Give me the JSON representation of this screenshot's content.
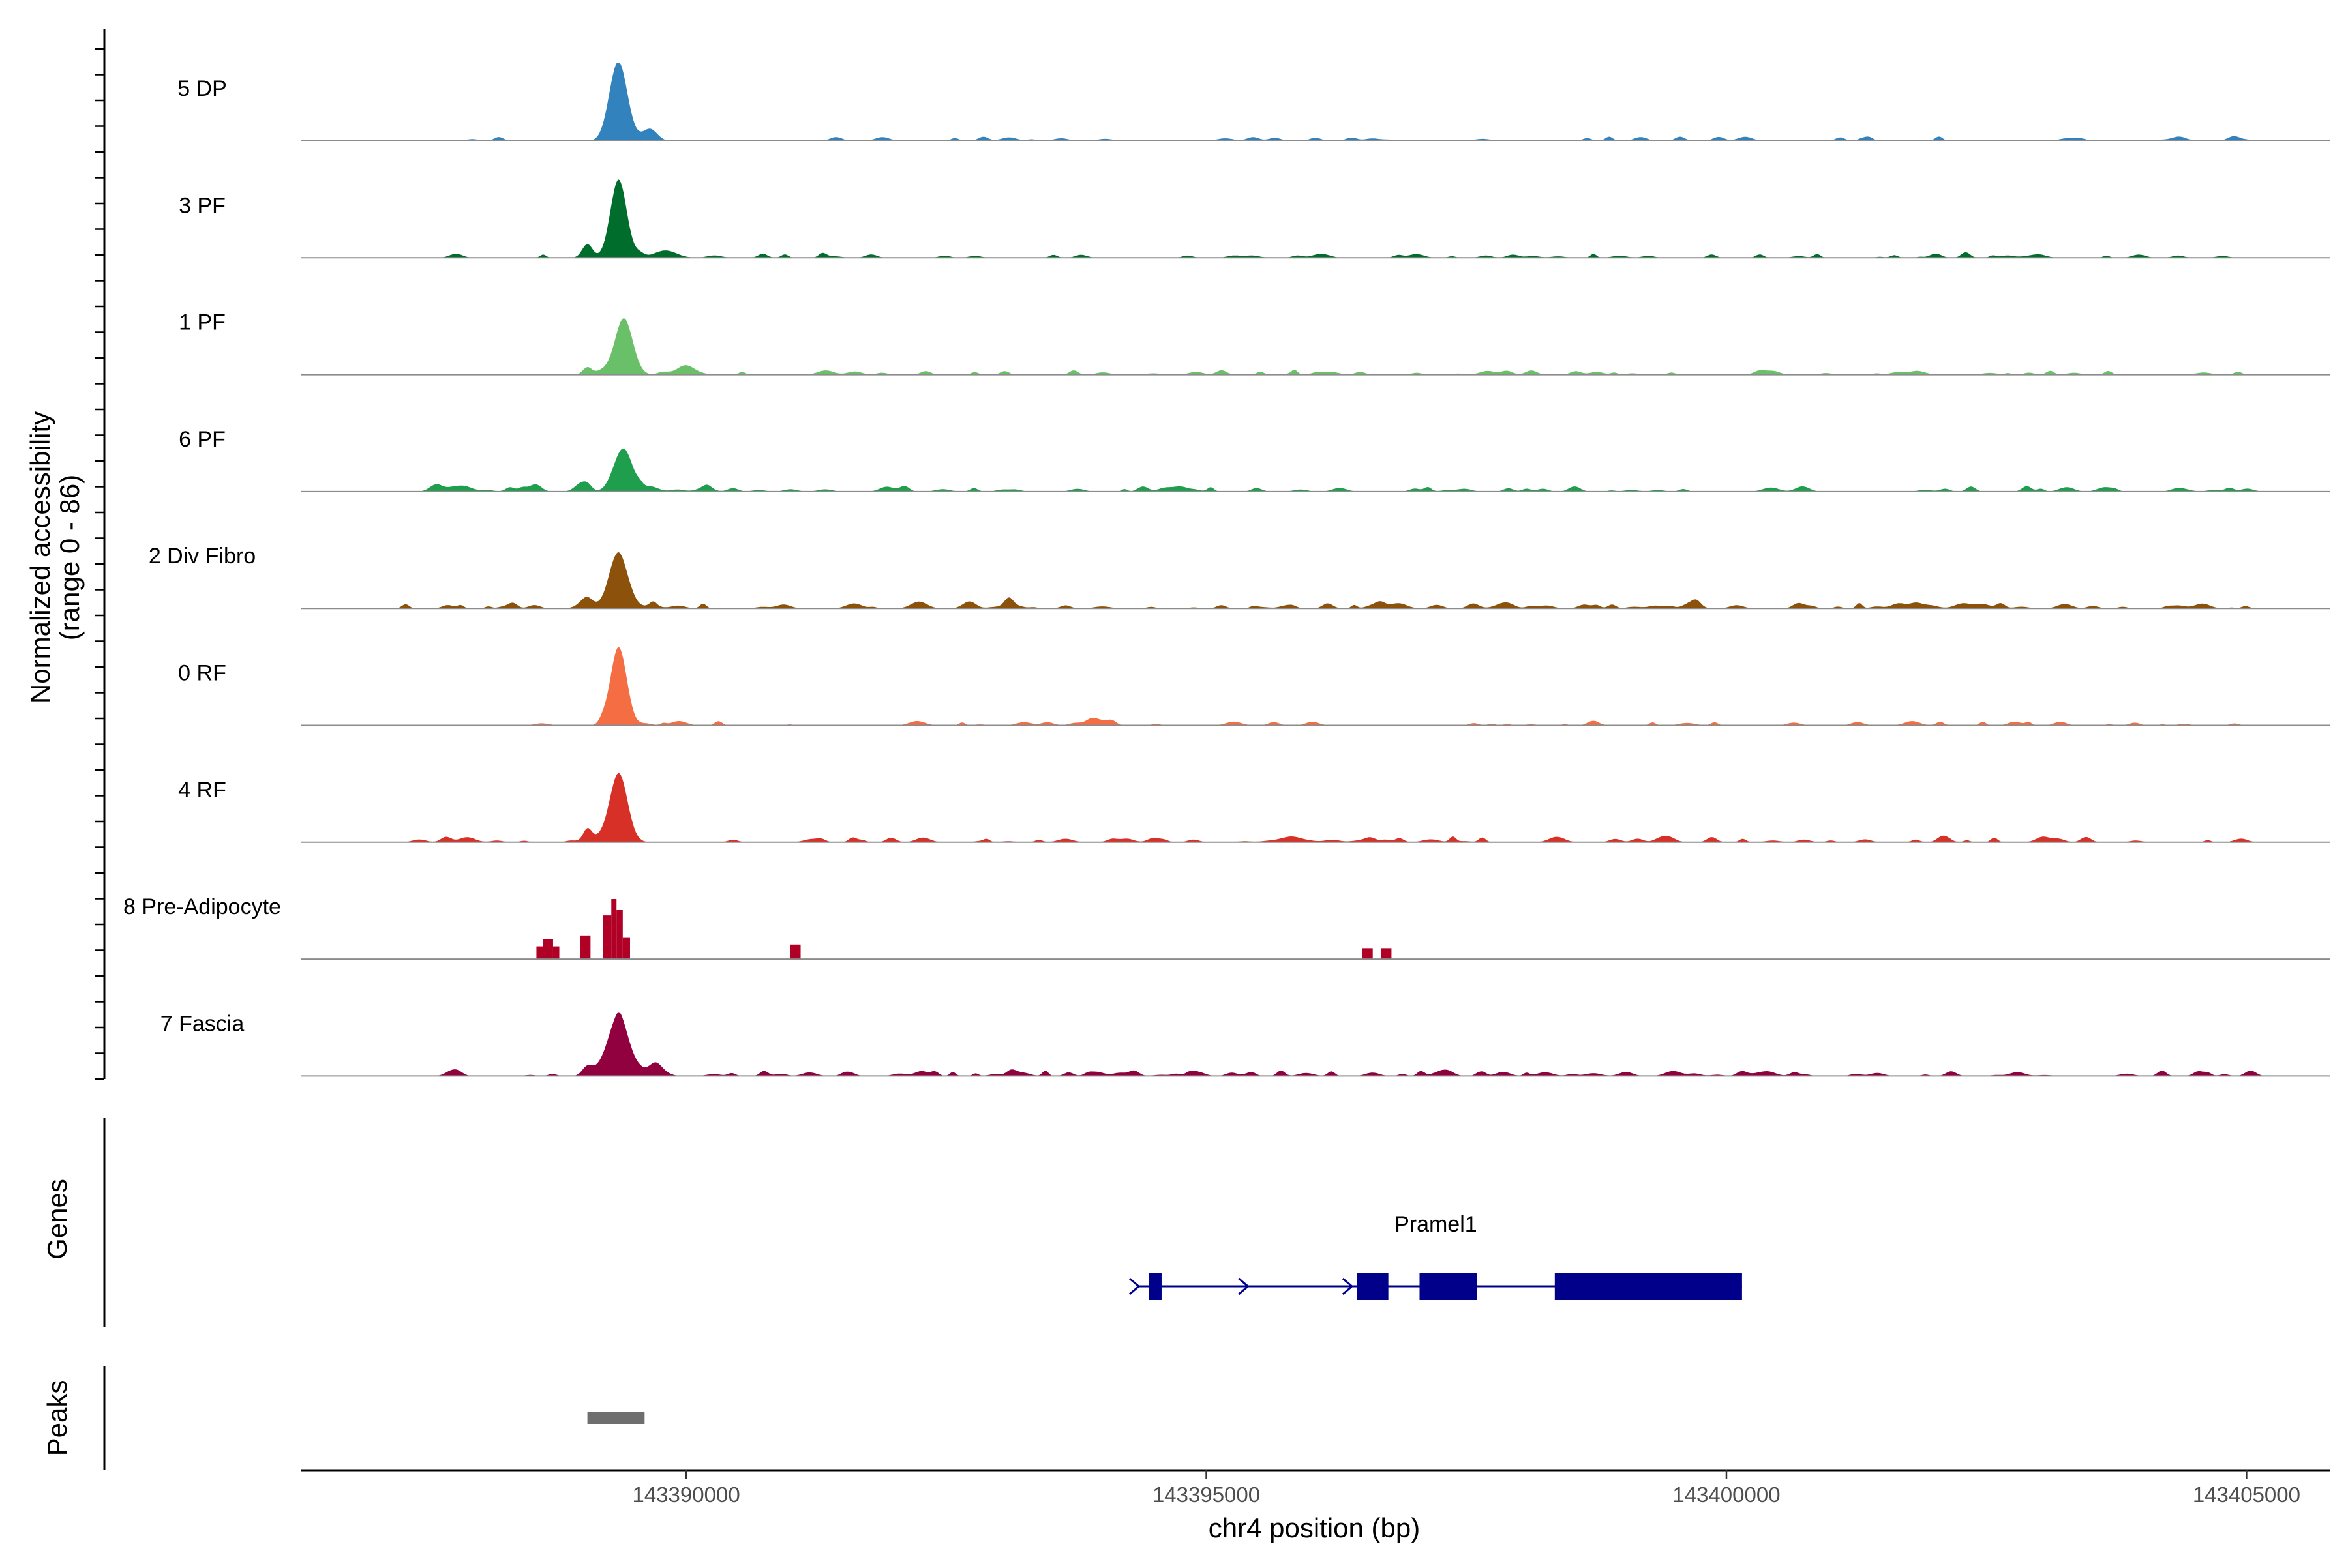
{
  "chart_data": {
    "type": "area",
    "title": "",
    "ylabel_line1": "Normalized accessibility",
    "ylabel_line2": "(range 0 - 86)",
    "yrange": [
      0,
      86
    ],
    "xlabel": "chr4 position (bp)",
    "xlim": [
      143386300,
      143405800
    ],
    "xticks": [
      {
        "value": 143390000,
        "label": "143390000"
      },
      {
        "value": 143395000,
        "label": "143395000"
      },
      {
        "value": 143400000,
        "label": "143400000"
      },
      {
        "value": 143405000,
        "label": "143405000"
      }
    ],
    "tracks": [
      {
        "name": "5 DP",
        "color": "#3182bd",
        "peaks": [
          [
            143389350,
            86,
            120
          ],
          [
            143389650,
            10,
            100
          ]
        ],
        "noise": {
          "from": 143387500,
          "to": 143405000,
          "spacing": 210,
          "height": 4,
          "seed": 11,
          "density": 0.45
        }
      },
      {
        "name": "3 PF",
        "color": "#006d2c",
        "peaks": [
          [
            143389350,
            86,
            110
          ],
          [
            143389050,
            15,
            70
          ],
          [
            143389800,
            8,
            150
          ],
          [
            143402300,
            6,
            60
          ]
        ],
        "noise": {
          "from": 143387600,
          "to": 143405000,
          "spacing": 200,
          "height": 4,
          "seed": 23,
          "density": 0.5
        }
      },
      {
        "name": "1 PF",
        "color": "#6abf69",
        "peaks": [
          [
            143389400,
            62,
            120
          ],
          [
            143389050,
            8,
            60
          ],
          [
            143390000,
            6,
            150
          ]
        ],
        "noise": {
          "from": 143388000,
          "to": 143405000,
          "spacing": 200,
          "height": 4,
          "seed": 37,
          "density": 0.55
        }
      },
      {
        "name": "6 PF",
        "color": "#1f9e4d",
        "peaks": [
          [
            143389400,
            46,
            120
          ],
          [
            143389000,
            10,
            90
          ],
          [
            143387600,
            8,
            90
          ],
          [
            143388550,
            8,
            80
          ]
        ],
        "noise": {
          "from": 143387300,
          "to": 143405000,
          "spacing": 180,
          "height": 5,
          "seed": 41,
          "density": 0.6
        }
      },
      {
        "name": "2 Div Fibro",
        "color": "#8c510a",
        "peaks": [
          [
            143389350,
            58,
            130
          ],
          [
            143389050,
            10,
            80
          ],
          [
            143393100,
            10,
            60
          ]
        ],
        "noise": {
          "from": 143387300,
          "to": 143405000,
          "spacing": 170,
          "height": 5,
          "seed": 53,
          "density": 0.7
        }
      },
      {
        "name": "0 RF",
        "color": "#f46d43",
        "peaks": [
          [
            143389350,
            86,
            110
          ],
          [
            143393900,
            7,
            80
          ]
        ],
        "noise": {
          "from": 143388000,
          "to": 143405000,
          "spacing": 190,
          "height": 4,
          "seed": 67,
          "density": 0.5
        }
      },
      {
        "name": "4 RF",
        "color": "#d73027",
        "peaks": [
          [
            143389350,
            75,
            120
          ],
          [
            143389050,
            14,
            60
          ]
        ],
        "noise": {
          "from": 143387300,
          "to": 143405000,
          "spacing": 180,
          "height": 5,
          "seed": 79,
          "density": 0.55
        }
      },
      {
        "name": "8 Pre-Adipocyte",
        "color": "#b10026",
        "blocks": [
          [
            143388560,
            143388620,
            14
          ],
          [
            143388620,
            143388720,
            22
          ],
          [
            143388720,
            143388780,
            14
          ],
          [
            143388980,
            143389080,
            26
          ],
          [
            143389200,
            143389280,
            48
          ],
          [
            143389280,
            143389330,
            66
          ],
          [
            143389330,
            143389390,
            54
          ],
          [
            143389390,
            143389460,
            24
          ],
          [
            143391000,
            143391100,
            16
          ],
          [
            143396500,
            143396600,
            12
          ],
          [
            143396680,
            143396780,
            12
          ]
        ]
      },
      {
        "name": "7 Fascia",
        "color": "#91003f",
        "peaks": [
          [
            143389350,
            66,
            140
          ],
          [
            143389700,
            12,
            120
          ],
          [
            143389050,
            10,
            70
          ]
        ],
        "noise": {
          "from": 143387600,
          "to": 143405000,
          "spacing": 170,
          "height": 5,
          "seed": 97,
          "density": 0.7
        }
      }
    ],
    "genes_label": "Genes",
    "gene": {
      "name": "Pramel1",
      "start": 143394350,
      "end": 143400150,
      "strand": "+",
      "exons": [
        [
          143394450,
          143394570
        ],
        [
          143396450,
          143396750
        ],
        [
          143397050,
          143397600
        ],
        [
          143398350,
          143400150
        ]
      ],
      "arrows": [
        143394350,
        143395400,
        143396400
      ]
    },
    "peaks_label": "Peaks",
    "peak_regions": [
      [
        143389050,
        143389600
      ]
    ]
  }
}
